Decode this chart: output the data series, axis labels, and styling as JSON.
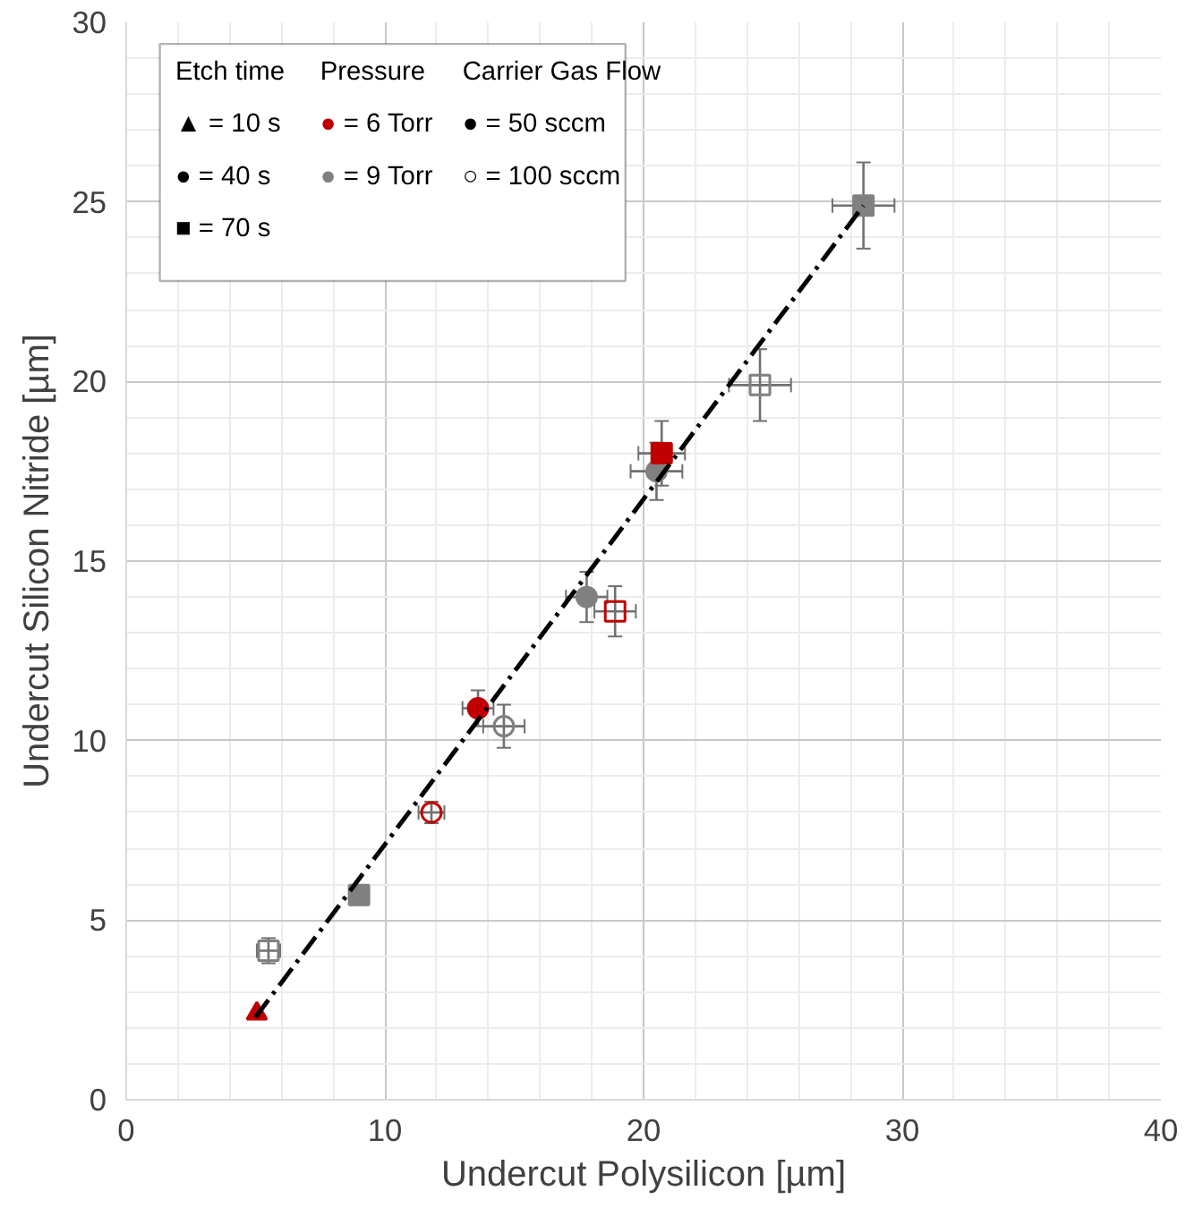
{
  "chart_data": {
    "type": "scatter",
    "xlabel": "Undercut Polysilicon [µm]",
    "ylabel": "Undercut Silicon Nitride [µm]",
    "xlim": [
      0,
      40
    ],
    "ylim": [
      0,
      30
    ],
    "xticks": [
      0,
      10,
      20,
      30,
      40
    ],
    "yticks": [
      0,
      5,
      10,
      15,
      20,
      25,
      30
    ],
    "grid": true,
    "annotations": [
      "Etch time",
      "▲ = 10 s",
      "● = 40 s",
      "■ = 70 s",
      "Pressure",
      "● = 6 Torr",
      "● = 9 Torr",
      "Carrier Gas Flow",
      "●  =  50  sccm",
      "○ = 100 sccm"
    ],
    "series": [
      {
        "x": [
          5.05
        ],
        "values": [
          2.4
        ],
        "marker": "triangle",
        "color": "#c00000"
      },
      {
        "x": [
          5.5
        ],
        "values": [
          4.15
        ],
        "xerrors": [
          0.45
        ],
        "errors": [
          0.35
        ],
        "marker": "square_open",
        "color": "#808080"
      },
      {
        "x": [
          9.0
        ],
        "values": [
          5.7
        ],
        "xerrors": [
          0.3
        ],
        "errors": [
          0.25
        ],
        "marker": "square",
        "color": "#808080"
      },
      {
        "x": [
          11.8
        ],
        "values": [
          8.0
        ],
        "xerrors": [
          0.5
        ],
        "errors": [
          0.3
        ],
        "marker": "circle_open",
        "color": "#c00000"
      },
      {
        "x": [
          13.6
        ],
        "values": [
          10.9
        ],
        "xerrors": [
          0.6
        ],
        "errors": [
          0.5
        ],
        "marker": "circle",
        "color": "#c00000"
      },
      {
        "x": [
          14.6
        ],
        "values": [
          10.4
        ],
        "xerrors": [
          0.8
        ],
        "errors": [
          0.6
        ],
        "marker": "circle_open",
        "color": "#808080"
      },
      {
        "x": [
          17.8
        ],
        "values": [
          14.0
        ],
        "xerrors": [
          0.8
        ],
        "errors": [
          0.7
        ],
        "marker": "circle",
        "color": "#808080"
      },
      {
        "x": [
          18.9
        ],
        "values": [
          13.6
        ],
        "xerrors": [
          0.8
        ],
        "errors": [
          0.7
        ],
        "marker": "square_open",
        "color": "#c00000"
      },
      {
        "x": [
          20.5
        ],
        "values": [
          17.5
        ],
        "xerrors": [
          1.0
        ],
        "errors": [
          0.8
        ],
        "marker": "circle",
        "color": "#808080"
      },
      {
        "x": [
          20.7
        ],
        "values": [
          18.0
        ],
        "xerrors": [
          0.9
        ],
        "errors": [
          0.9
        ],
        "marker": "square",
        "color": "#c00000"
      },
      {
        "x": [
          24.5
        ],
        "values": [
          19.9
        ],
        "xerrors": [
          1.2
        ],
        "errors": [
          1.0
        ],
        "marker": "square_open",
        "color": "#808080"
      },
      {
        "x": [
          28.5
        ],
        "values": [
          24.9
        ],
        "xerrors": [
          1.2
        ],
        "errors": [
          1.2
        ],
        "marker": "square",
        "color": "#808080"
      },
      {
        "type": "line",
        "x": [
          5.0,
          28.5
        ],
        "values": [
          2.3,
          24.9
        ],
        "color": "#000000",
        "line_style": "dashdot"
      }
    ]
  }
}
